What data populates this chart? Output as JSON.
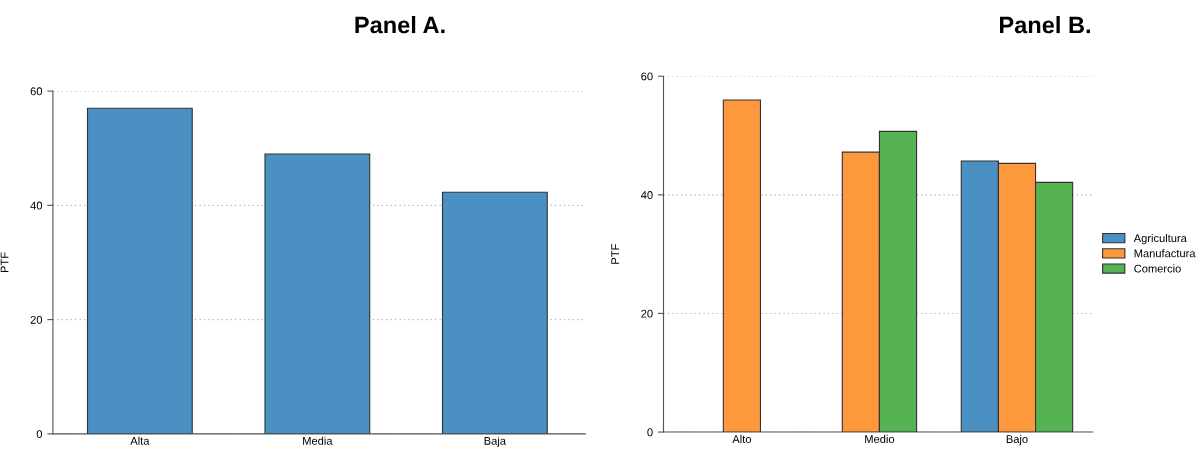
{
  "chart_data": [
    {
      "type": "bar",
      "title": "Panel A.",
      "ylabel": "PTF",
      "categories": [
        "Alta",
        "Media",
        "Baja"
      ],
      "values": [
        57.0,
        49.0,
        42.3
      ],
      "color": "#4a90c2",
      "ylim": [
        0,
        60
      ],
      "yticks": [
        0,
        20,
        40,
        60
      ],
      "grid": "y",
      "legend": false
    },
    {
      "type": "bar",
      "title": "Panel B.",
      "ylabel": "PTF",
      "categories": [
        "Alto",
        "Medio",
        "Bajo"
      ],
      "series": [
        {
          "name": "Agricultura",
          "color": "#4a90c2",
          "values": [
            null,
            null,
            45.7
          ]
        },
        {
          "name": "Manufactura",
          "color": "#fd983c",
          "values": [
            56.0,
            47.2,
            45.3
          ]
        },
        {
          "name": "Comercio",
          "color": "#56b354",
          "values": [
            null,
            50.7,
            42.1
          ]
        }
      ],
      "ylim": [
        0,
        60
      ],
      "yticks": [
        0,
        20,
        40,
        60
      ],
      "grid": "y",
      "legend": "right"
    }
  ]
}
